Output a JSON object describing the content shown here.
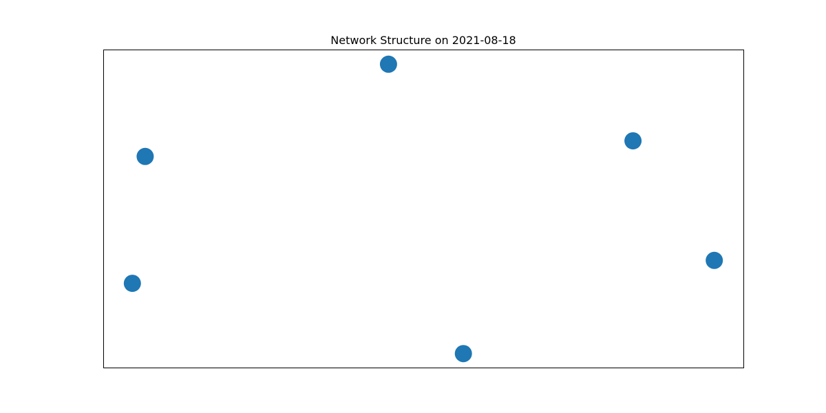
{
  "chart_data": {
    "type": "scatter",
    "title": "Network Structure on 2021-08-18",
    "axes_visible": false,
    "xlim": [
      0,
      100
    ],
    "ylim": [
      0,
      100
    ],
    "marker_color": "#1f77b4",
    "nodes": [
      {
        "x": 44.5,
        "y": 95.5
      },
      {
        "x": 6.5,
        "y": 66.5
      },
      {
        "x": 82.7,
        "y": 71.4
      },
      {
        "x": 4.5,
        "y": 26.6
      },
      {
        "x": 95.4,
        "y": 33.8
      },
      {
        "x": 56.2,
        "y": 4.5
      }
    ],
    "edges": []
  }
}
